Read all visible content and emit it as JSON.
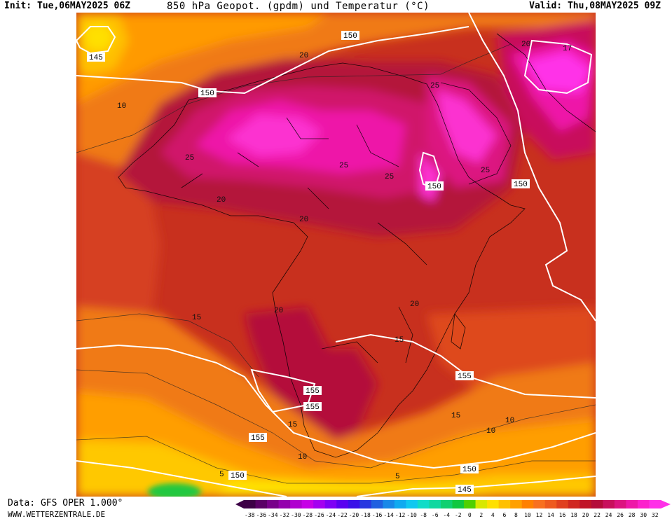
{
  "header": {
    "init": "Init: Tue,06MAY2025 06Z",
    "title": "850 hPa Geopot. (gpdm) und Temperatur (°C)",
    "valid": "Valid: Thu,08MAY2025 09Z"
  },
  "footer": {
    "data_source": "Data: GFS OPER 1.000°",
    "website": "WWW.WETTERZENTRALE.DE"
  },
  "map": {
    "geopotential_labels": [
      "145",
      "150",
      "150",
      "150",
      "150",
      "155",
      "155",
      "155",
      "155",
      "150",
      "145",
      "150"
    ],
    "temperature_labels": [
      "10",
      "20",
      "25",
      "25",
      "25",
      "25",
      "20",
      "20",
      "20",
      "25",
      "20",
      "15",
      "20",
      "15",
      "15",
      "10",
      "15",
      "10",
      "5",
      "10",
      "5",
      "17"
    ]
  },
  "colorbar": {
    "labels": [
      "-38",
      "-36",
      "-34",
      "-32",
      "-30",
      "-28",
      "-26",
      "-24",
      "-22",
      "-20",
      "-18",
      "-16",
      "-14",
      "-12",
      "-10",
      "-8",
      "-6",
      "-4",
      "-2",
      "0",
      "2",
      "4",
      "6",
      "8",
      "10",
      "12",
      "14",
      "16",
      "18",
      "20",
      "22",
      "24",
      "26",
      "28",
      "30",
      "32"
    ],
    "colors": [
      "#3d0046",
      "#5a0066",
      "#78008a",
      "#9400ad",
      "#b000cf",
      "#c600e6",
      "#a400f0",
      "#7e00f5",
      "#5a00f0",
      "#3a10e8",
      "#2838e0",
      "#2060e0",
      "#1888e8",
      "#10aaf0",
      "#10c8f0",
      "#10dcc8",
      "#10d8a0",
      "#10d070",
      "#10c840",
      "#50d000",
      "#d8e800",
      "#ffe000",
      "#ffc000",
      "#ffa000",
      "#ff8000",
      "#f87020",
      "#ee5a20",
      "#e04020",
      "#d02820",
      "#c01428",
      "#b40c3a",
      "#c8105c",
      "#dc1480",
      "#ee18a8",
      "#fc20cc",
      "#ff30e8"
    ],
    "arrow_left_color": "#3d0046",
    "arrow_right_color": "#ff30e8"
  }
}
